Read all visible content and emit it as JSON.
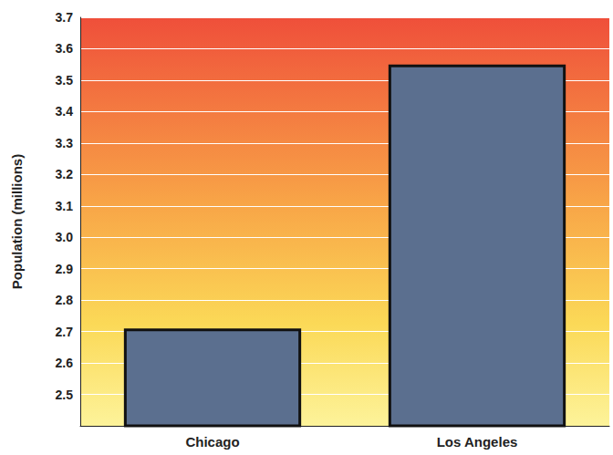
{
  "chart_data": {
    "type": "bar",
    "y_label": "Population (millions)",
    "categories": [
      "Chicago",
      "Los Angeles"
    ],
    "values": [
      2.71,
      3.55
    ],
    "color": "#5b6f8f",
    "ylim": [
      2.4,
      3.7
    ],
    "yticks": [
      2.5,
      2.6,
      2.7,
      2.8,
      2.9,
      {
        "value": 3,
        "label": "3.0"
      },
      3.1,
      3.2,
      3.3,
      3.4,
      3.5,
      3.6,
      3.7
    ],
    "grid": true
  }
}
